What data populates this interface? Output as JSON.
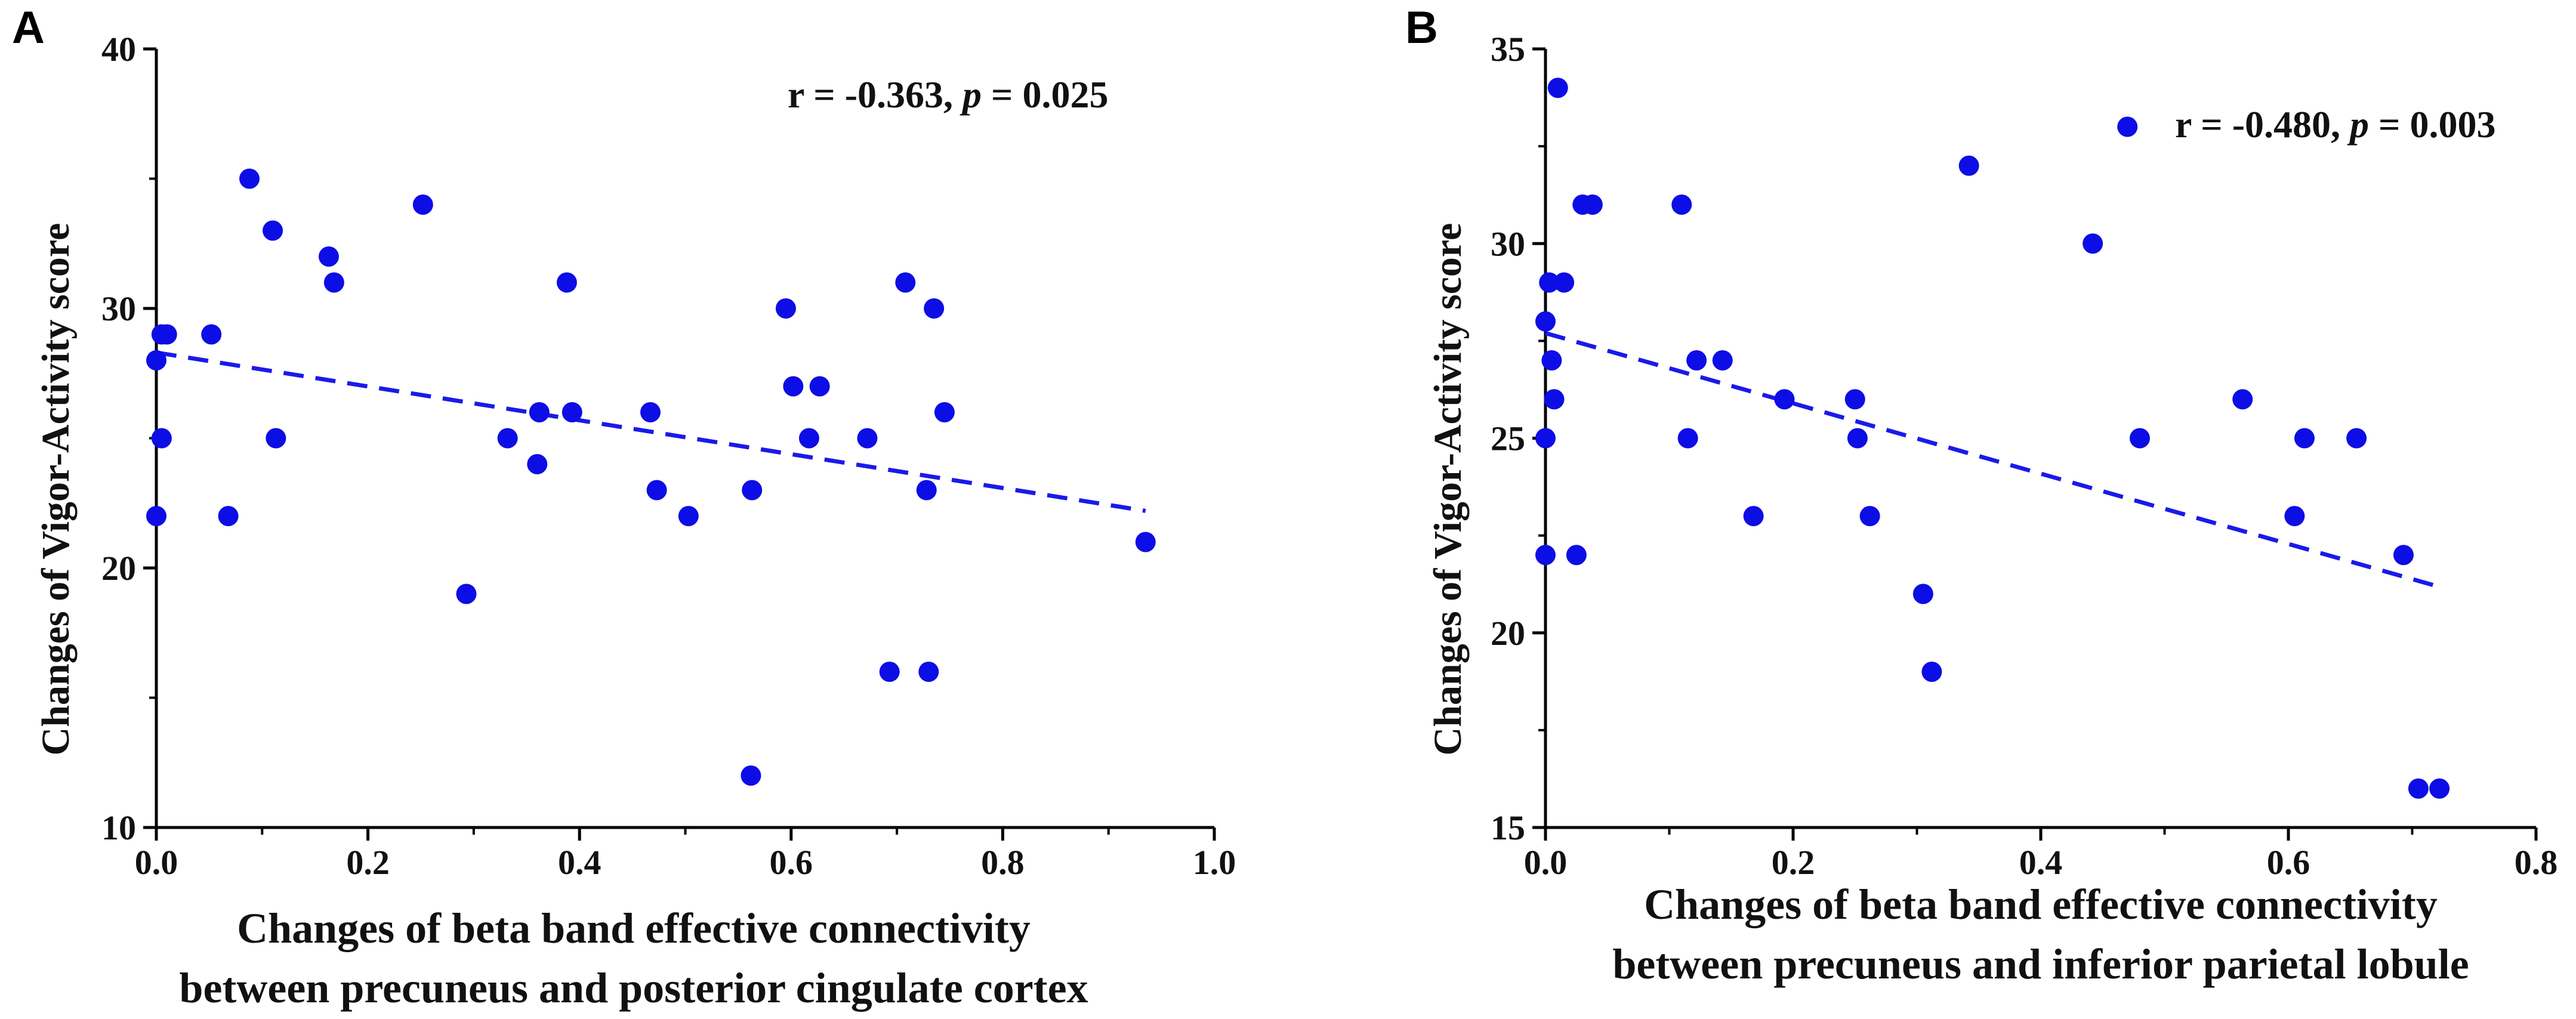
{
  "chart_data": [
    {
      "type": "scatter",
      "panel_label": "A",
      "annotation": {
        "prefix": "r = -0.363, ",
        "p_symbol": "p",
        "suffix": " = 0.025"
      },
      "xlabel_lines": [
        "Changes of beta band effective connectivity",
        "between precuneus and posterior cingulate cortex"
      ],
      "ylabel": "Changes of Vigor-Activity score",
      "xlim": [
        0.0,
        1.0
      ],
      "ylim": [
        10,
        40
      ],
      "xticks": [
        "0.0",
        "0.2",
        "0.4",
        "0.6",
        "0.8",
        "1.0"
      ],
      "yticks": [
        "10",
        "20",
        "30",
        "40"
      ],
      "point_color": "#0d0de6",
      "fit": {
        "x": [
          0.0,
          0.935
        ],
        "y": [
          28.3,
          22.2
        ],
        "style": "dashed",
        "color": "#1a1ae8"
      },
      "points": {
        "x": [
          0.0,
          0.0,
          0.005,
          0.005,
          0.01,
          0.052,
          0.068,
          0.088,
          0.11,
          0.113,
          0.163,
          0.168,
          0.252,
          0.293,
          0.332,
          0.36,
          0.362,
          0.388,
          0.393,
          0.467,
          0.473,
          0.503,
          0.562,
          0.563,
          0.595,
          0.602,
          0.617,
          0.627,
          0.672,
          0.693,
          0.708,
          0.728,
          0.73,
          0.735,
          0.745,
          0.935
        ],
        "y": [
          22,
          28,
          29,
          25,
          29,
          29,
          22,
          35,
          33,
          25,
          32,
          31,
          34,
          19,
          25,
          24,
          26,
          31,
          26,
          26,
          23,
          22,
          12,
          23,
          30,
          27,
          25,
          27,
          25,
          16,
          31,
          23,
          16,
          30,
          26,
          21
        ]
      }
    },
    {
      "type": "scatter",
      "panel_label": "B",
      "annotation": {
        "prefix": "r = -0.480, ",
        "p_symbol": "p",
        "suffix": " = 0.003"
      },
      "xlabel_lines": [
        "Changes of beta band effective connectivity",
        "between precuneus and inferior parietal lobule"
      ],
      "ylabel": "Changes of Vigor-Activity score",
      "xlim": [
        0.0,
        0.8
      ],
      "ylim": [
        15,
        35
      ],
      "xticks": [
        "0.0",
        "0.2",
        "0.4",
        "0.6",
        "0.8"
      ],
      "yticks": [
        "15",
        "20",
        "25",
        "30",
        "35"
      ],
      "point_color": "#0d0de6",
      "fit": {
        "x": [
          0.0,
          0.72
        ],
        "y": [
          27.7,
          21.2
        ],
        "style": "dashed",
        "color": "#1a1ae8"
      },
      "points": {
        "x": [
          0.0,
          0.0,
          0.0,
          0.003,
          0.005,
          0.007,
          0.01,
          0.015,
          0.025,
          0.03,
          0.038,
          0.11,
          0.115,
          0.122,
          0.143,
          0.168,
          0.193,
          0.25,
          0.252,
          0.262,
          0.305,
          0.312,
          0.342,
          0.442,
          0.47,
          0.48,
          0.563,
          0.605,
          0.613,
          0.655,
          0.693,
          0.705,
          0.722
        ],
        "y": [
          28,
          25,
          22,
          29,
          27,
          26,
          34,
          29,
          22,
          31,
          31,
          31,
          25,
          27,
          27,
          23,
          26,
          26,
          25,
          23,
          21,
          19,
          32,
          30,
          33,
          25,
          26,
          23,
          25,
          25,
          22,
          16,
          16
        ]
      }
    }
  ]
}
